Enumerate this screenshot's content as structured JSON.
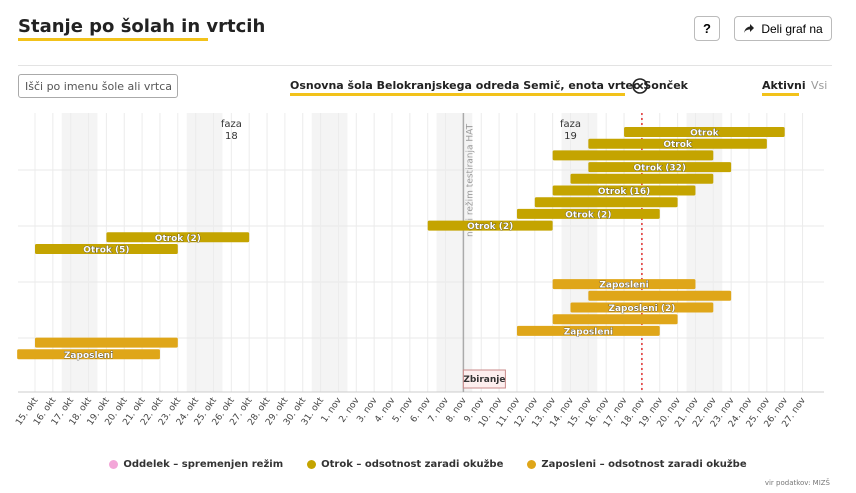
{
  "header": {
    "title": "Stanje po šolah in vrtcih",
    "help_label": "?",
    "share_label": "Deli graf na"
  },
  "controls": {
    "search_placeholder": "Išči po imenu šole ali vrtca",
    "selected_school": "Osnovna šola Belokranjskega odreda Semič, enota vrtec Sonček",
    "filter_active": "Aktivni",
    "filter_all": "Vsi"
  },
  "colors": {
    "accent": "#f2c21a",
    "otrok": "#c4a400",
    "zaposleni": "#dfa619",
    "oddelek": "#f3a6d8",
    "today_line": "#e03030",
    "hat_line": "#aaaaaa"
  },
  "chart_data": {
    "type": "timeline",
    "x_ticks": [
      "15. okt",
      "16. okt",
      "17. okt",
      "18. okt",
      "19. okt",
      "20. okt",
      "21. okt",
      "22. okt",
      "23. okt",
      "24. okt",
      "25. okt",
      "26. okt",
      "27. okt",
      "28. okt",
      "29. okt",
      "30. okt",
      "31. okt",
      "1. nov",
      "2. nov",
      "3. nov",
      "4. nov",
      "5. nov",
      "6. nov",
      "7. nov",
      "8. nov",
      "9. nov",
      "10. nov",
      "11. nov",
      "12. nov",
      "13. nov",
      "14. nov",
      "15. nov",
      "16. nov",
      "17. nov",
      "18. nov",
      "19. nov",
      "20. nov",
      "21. nov",
      "22. nov",
      "23. nov",
      "24. nov",
      "25. nov",
      "26. nov",
      "27. nov"
    ],
    "weekend_starts": [
      "17. okt",
      "24. okt",
      "31. okt",
      "7. nov",
      "14. nov",
      "21. nov"
    ],
    "phases": [
      {
        "label": "faza",
        "number": "18",
        "date": "26. okt"
      },
      {
        "label": "faza",
        "number": "19",
        "date": "14. nov"
      }
    ],
    "hat_line": {
      "date": "8. nov",
      "label": "novi režim testiranja HAT"
    },
    "today_line": {
      "date": "18. nov"
    },
    "event_marker": {
      "date": "8. nov",
      "label": "Zbiranje"
    },
    "bars": [
      {
        "category": "otrok",
        "start": "17. nov",
        "end": "26. nov",
        "label": "Otrok",
        "row": 0
      },
      {
        "category": "otrok",
        "start": "15. nov",
        "end": "25. nov",
        "label": "Otrok",
        "row": 1
      },
      {
        "category": "otrok",
        "start": "13. nov",
        "end": "22. nov",
        "label": "",
        "row": 2
      },
      {
        "category": "otrok",
        "start": "15. nov",
        "end": "23. nov",
        "label": "Otrok (32)",
        "row": 3
      },
      {
        "category": "otrok",
        "start": "14. nov",
        "end": "22. nov",
        "label": "",
        "row": 4
      },
      {
        "category": "otrok",
        "start": "13. nov",
        "end": "21. nov",
        "label": "Otrok (16)",
        "row": 5
      },
      {
        "category": "otrok",
        "start": "12. nov",
        "end": "20. nov",
        "label": "",
        "row": 6
      },
      {
        "category": "otrok",
        "start": "11. nov",
        "end": "19. nov",
        "label": "Otrok (2)",
        "row": 7
      },
      {
        "category": "otrok",
        "start": "6. nov",
        "end": "13. nov",
        "label": "Otrok (2)",
        "row": 8
      },
      {
        "category": "otrok",
        "start": "19. okt",
        "end": "27. okt",
        "label": "Otrok (2)",
        "row": 9
      },
      {
        "category": "otrok",
        "start": "15. okt",
        "end": "23. okt",
        "label": "Otrok (5)",
        "row": 10
      },
      {
        "category": "zaposleni",
        "start": "13. nov",
        "end": "21. nov",
        "label": "Zaposleni",
        "row": 13
      },
      {
        "category": "zaposleni",
        "start": "15. nov",
        "end": "23. nov",
        "label": "",
        "row": 14
      },
      {
        "category": "zaposleni",
        "start": "14. nov",
        "end": "22. nov",
        "label": "Zaposleni (2)",
        "row": 15
      },
      {
        "category": "zaposleni",
        "start": "13. nov",
        "end": "20. nov",
        "label": "",
        "row": 16
      },
      {
        "category": "zaposleni",
        "start": "11. nov",
        "end": "19. nov",
        "label": "Zaposleni",
        "row": 17
      },
      {
        "category": "zaposleni",
        "start": "15. okt",
        "end": "23. okt",
        "label": "",
        "row": 18
      },
      {
        "category": "zaposleni",
        "start": "14. okt",
        "end": "22. okt",
        "label": "Zaposleni",
        "row": 19
      }
    ],
    "legend": [
      {
        "category": "oddelek",
        "label": "Oddelek – spremenjen režim"
      },
      {
        "category": "otrok",
        "label": "Otrok – odsotnost zaradi okužbe"
      },
      {
        "category": "zaposleni",
        "label": "Zaposleni – odsotnost zaradi okužbe"
      }
    ],
    "legend_position": "bottom",
    "source": "vir podatkov: MIZŠ"
  }
}
